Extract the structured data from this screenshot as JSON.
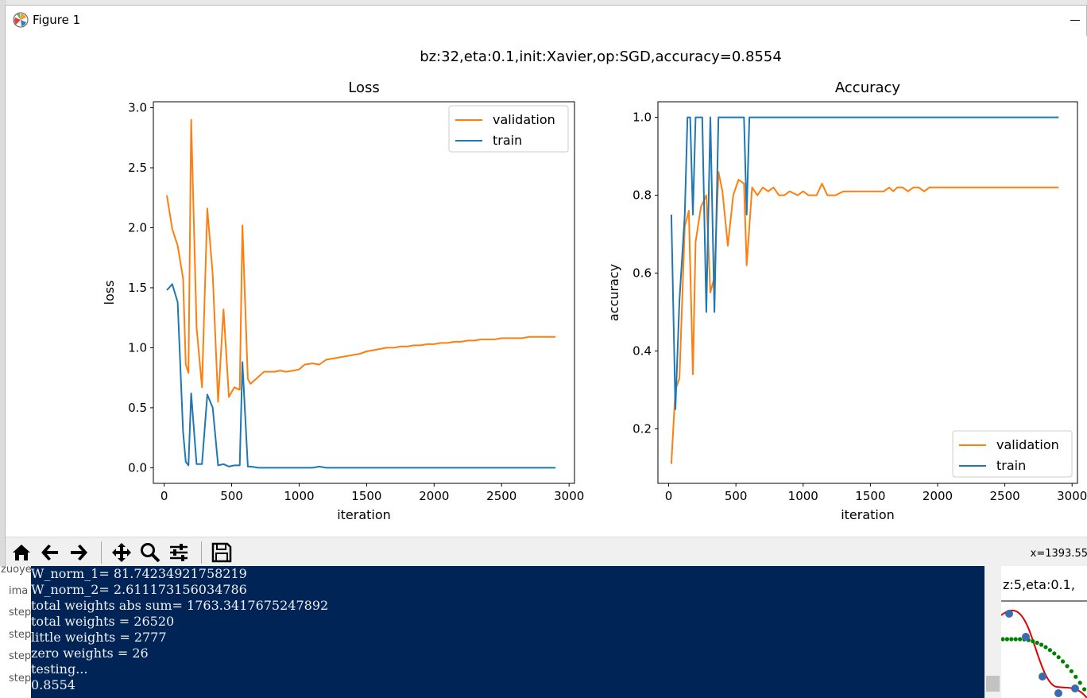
{
  "window": {
    "title": "Figure 1"
  },
  "figure": {
    "suptitle": "bz:32,eta:0.1,init:Xavier,op:SGD,accuracy=0.8554"
  },
  "chart_data": [
    {
      "type": "line",
      "title": "Loss",
      "xlabel": "iteration",
      "ylabel": "loss",
      "xlim": [
        -80,
        3040
      ],
      "ylim": [
        -0.13,
        3.05
      ],
      "xticks": [
        "0",
        "500",
        "1000",
        "1500",
        "2000",
        "2500",
        "3000"
      ],
      "yticks": [
        "0.0",
        "0.5",
        "1.0",
        "1.5",
        "2.0",
        "2.5",
        "3.0"
      ],
      "legend": "top-right",
      "grid": false,
      "series": [
        {
          "name": "validation",
          "color": "#ff7f0e",
          "x": [
            20,
            60,
            100,
            140,
            160,
            180,
            200,
            240,
            280,
            320,
            360,
            400,
            440,
            480,
            520,
            560,
            580,
            620,
            640,
            660,
            700,
            740,
            780,
            820,
            860,
            900,
            960,
            1000,
            1040,
            1100,
            1150,
            1200,
            1250,
            1300,
            1350,
            1400,
            1450,
            1500,
            1550,
            1600,
            1650,
            1700,
            1750,
            1800,
            1850,
            1900,
            1950,
            2000,
            2050,
            2100,
            2150,
            2200,
            2250,
            2300,
            2350,
            2400,
            2450,
            2500,
            2550,
            2600,
            2650,
            2700,
            2750,
            2800,
            2850,
            2900
          ],
          "y": [
            2.27,
            1.99,
            1.85,
            1.58,
            0.86,
            0.79,
            2.9,
            1.17,
            0.67,
            2.16,
            1.61,
            0.55,
            1.32,
            0.59,
            0.67,
            0.65,
            2.02,
            0.74,
            0.7,
            0.72,
            0.76,
            0.8,
            0.8,
            0.8,
            0.81,
            0.8,
            0.81,
            0.82,
            0.86,
            0.87,
            0.86,
            0.9,
            0.91,
            0.92,
            0.93,
            0.94,
            0.95,
            0.97,
            0.98,
            0.99,
            1.0,
            1.0,
            1.01,
            1.01,
            1.02,
            1.02,
            1.03,
            1.03,
            1.04,
            1.04,
            1.05,
            1.05,
            1.06,
            1.06,
            1.07,
            1.07,
            1.07,
            1.08,
            1.08,
            1.08,
            1.08,
            1.09,
            1.09,
            1.09,
            1.09,
            1.09
          ]
        },
        {
          "name": "train",
          "color": "#1f77b4",
          "x": [
            20,
            60,
            100,
            140,
            160,
            180,
            200,
            240,
            280,
            320,
            360,
            400,
            440,
            480,
            520,
            560,
            580,
            620,
            640,
            700,
            800,
            900,
            1000,
            1100,
            1150,
            1200,
            1300,
            1400,
            1500,
            1600,
            1700,
            1800,
            1900,
            2000,
            2100,
            2200,
            2300,
            2400,
            2500,
            2600,
            2700,
            2800,
            2900
          ],
          "y": [
            1.48,
            1.53,
            1.38,
            0.3,
            0.05,
            0.02,
            0.62,
            0.03,
            0.03,
            0.61,
            0.5,
            0.02,
            0.03,
            0.01,
            0.02,
            0.02,
            0.88,
            0.01,
            0.01,
            0.0,
            0.0,
            0.0,
            0.0,
            0.0,
            0.01,
            0.0,
            0.0,
            0.0,
            0.0,
            0.0,
            0.0,
            0.0,
            0.0,
            0.0,
            0.0,
            0.0,
            0.0,
            0.0,
            0.0,
            0.0,
            0.0,
            0.0,
            0.0
          ]
        }
      ]
    },
    {
      "type": "line",
      "title": "Accuracy",
      "xlabel": "iteration",
      "ylabel": "accuracy",
      "xlim": [
        -80,
        3040
      ],
      "ylim": [
        0.06,
        1.04
      ],
      "xticks": [
        "0",
        "500",
        "1000",
        "1500",
        "2000",
        "2500",
        "3000"
      ],
      "yticks": [
        "0.2",
        "0.4",
        "0.6",
        "0.8",
        "1.0"
      ],
      "legend": "bottom-right",
      "grid": false,
      "series": [
        {
          "name": "validation",
          "color": "#ff7f0e",
          "x": [
            20,
            50,
            80,
            120,
            150,
            180,
            200,
            240,
            280,
            310,
            340,
            370,
            400,
            440,
            480,
            520,
            560,
            580,
            620,
            660,
            700,
            740,
            780,
            820,
            860,
            900,
            960,
            1000,
            1040,
            1100,
            1140,
            1180,
            1240,
            1300,
            1400,
            1500,
            1600,
            1640,
            1670,
            1700,
            1740,
            1780,
            1820,
            1860,
            1900,
            1940,
            2000,
            2100,
            2200,
            2300,
            2400,
            2500,
            2600,
            2700,
            2800,
            2900
          ],
          "y": [
            0.11,
            0.3,
            0.33,
            0.72,
            0.76,
            0.34,
            0.68,
            0.77,
            0.8,
            0.55,
            0.59,
            0.86,
            0.81,
            0.67,
            0.8,
            0.84,
            0.83,
            0.62,
            0.82,
            0.8,
            0.82,
            0.81,
            0.82,
            0.8,
            0.8,
            0.81,
            0.8,
            0.81,
            0.8,
            0.8,
            0.83,
            0.8,
            0.8,
            0.81,
            0.81,
            0.81,
            0.81,
            0.82,
            0.81,
            0.82,
            0.82,
            0.81,
            0.82,
            0.82,
            0.81,
            0.82,
            0.82,
            0.82,
            0.82,
            0.82,
            0.82,
            0.82,
            0.82,
            0.82,
            0.82,
            0.82
          ]
        },
        {
          "name": "train",
          "color": "#1f77b4",
          "x": [
            20,
            50,
            80,
            120,
            140,
            160,
            180,
            200,
            220,
            250,
            280,
            310,
            340,
            370,
            400,
            440,
            480,
            520,
            560,
            580,
            600,
            620,
            700,
            800,
            1000,
            1500,
            2000,
            2500,
            2900
          ],
          "y": [
            0.75,
            0.25,
            0.53,
            0.75,
            1.0,
            1.0,
            0.75,
            1.0,
            1.0,
            1.0,
            0.5,
            1.0,
            0.5,
            1.0,
            1.0,
            1.0,
            1.0,
            1.0,
            1.0,
            0.75,
            1.0,
            1.0,
            1.0,
            1.0,
            1.0,
            1.0,
            1.0,
            1.0,
            1.0
          ]
        }
      ]
    }
  ],
  "toolbar": {
    "items": [
      "home-icon",
      "back-arrow-icon",
      "forward-arrow-icon",
      "pan-icon",
      "zoom-icon",
      "configure-subplots-icon",
      "save-icon"
    ],
    "coordinates": "x=1393.55"
  },
  "console": {
    "lines": [
      "W_norm_1= 81.74234921758219",
      "W_norm_2= 2.611173156034786",
      "total weights abs sum= 1763.3417675247892",
      "total weights = 26520",
      "little weights = 2777",
      "zero weights = 26",
      "testing...",
      "0.8554"
    ]
  },
  "explorer": {
    "items": [
      "zuoye",
      "ima",
      "step",
      "step",
      "step",
      "step"
    ]
  },
  "background_figure": {
    "title": "z:5,eta:0.1,"
  }
}
